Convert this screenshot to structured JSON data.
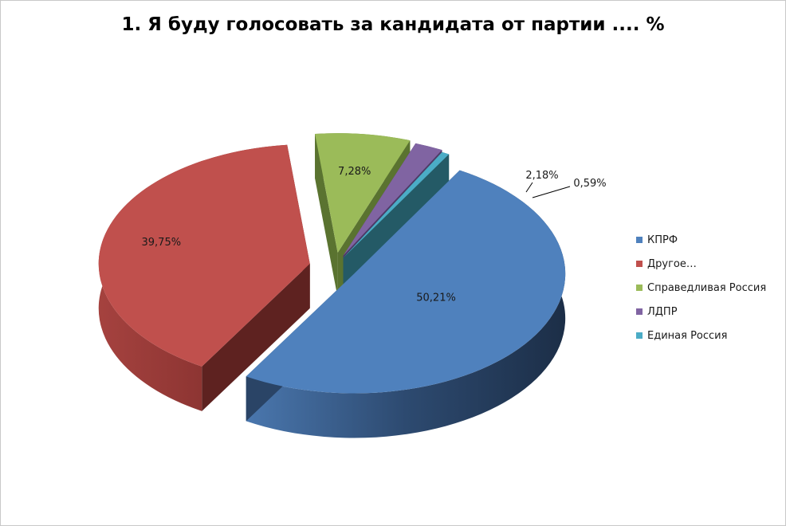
{
  "chart_data": {
    "type": "pie",
    "title": "1. Я буду голосовать за кандидата от партии .... %",
    "legend_position": "right",
    "exploded": true,
    "three_d": true,
    "slices": [
      {
        "label": "КПРФ",
        "value": 50.21,
        "value_label": "50,21%",
        "color": "#4F81BD"
      },
      {
        "label": "Другое…",
        "value": 39.75,
        "value_label": "39,75%",
        "color": "#C0504D"
      },
      {
        "label": "Справедливая Россия",
        "value": 7.28,
        "value_label": "7,28%",
        "color": "#9BBB59"
      },
      {
        "label": "ЛДПР",
        "value": 2.18,
        "value_label": "2,18%",
        "color": "#8064A2"
      },
      {
        "label": "Единая Россия",
        "value": 0.59,
        "value_label": "0,59%",
        "color": "#4BACC6"
      }
    ]
  }
}
